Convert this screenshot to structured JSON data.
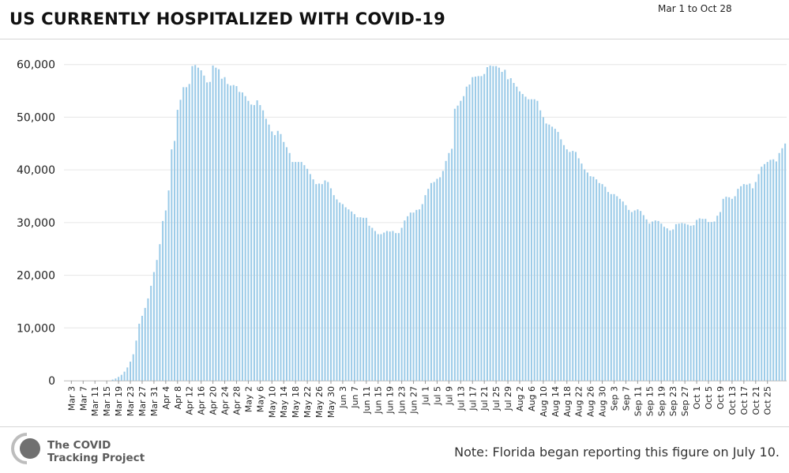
{
  "header": {
    "title": "US CURRENTLY HOSPITALIZED WITH COVID-19",
    "date_range": "Mar 1 to Oct 28"
  },
  "footer": {
    "logo_line1": "The COVID",
    "logo_line2": "Tracking Project",
    "note": "Note: Florida began reporting this figure on July 10."
  },
  "colors": {
    "bar": "#9ccbe8",
    "grid": "#e6e6e6"
  },
  "chart_data": {
    "type": "bar",
    "title": "US CURRENTLY HOSPITALIZED WITH COVID-19",
    "xlabel": "",
    "ylabel": "",
    "ylim": [
      0,
      64000
    ],
    "yticks": [
      0,
      10000,
      20000,
      30000,
      40000,
      50000,
      60000
    ],
    "ytick_labels": [
      "0",
      "10,000",
      "20,000",
      "30,000",
      "40,000",
      "50,000",
      "60,000"
    ],
    "grid": true,
    "legend": "none",
    "x_labels": [
      "Mar 3",
      "Mar 7",
      "Mar 11",
      "Mar 15",
      "Mar 19",
      "Mar 23",
      "Mar 27",
      "Mar 31",
      "Apr 4",
      "Apr 8",
      "Apr 12",
      "Apr 16",
      "Apr 20",
      "Apr 24",
      "Apr 28",
      "May 2",
      "May 6",
      "May 10",
      "May 14",
      "May 18",
      "May 22",
      "May 26",
      "May 30",
      "Jun 3",
      "Jun 7",
      "Jun 11",
      "Jun 15",
      "Jun 19",
      "Jun 23",
      "Jun 27",
      "Jul 1",
      "Jul 5",
      "Jul 9",
      "Jul 13",
      "Jul 17",
      "Jul 21",
      "Jul 25",
      "Jul 29",
      "Aug 2",
      "Aug 6",
      "Aug 10",
      "Aug 14",
      "Aug 18",
      "Aug 22",
      "Aug 26",
      "Aug 30",
      "Sep 3",
      "Sep 7",
      "Sep 11",
      "Sep 15",
      "Sep 19",
      "Sep 23",
      "Sep 27",
      "Oct 1",
      "Oct 5",
      "Oct 9",
      "Oct 13",
      "Oct 17",
      "Oct 21",
      "Oct 25"
    ],
    "first_date": "Mar 1",
    "last_date": "Oct 28",
    "values": [
      0,
      0,
      0,
      0,
      0,
      0,
      0,
      0,
      0,
      0,
      0,
      0,
      0,
      0,
      0,
      0,
      200,
      400,
      700,
      1100,
      1700,
      2500,
      3600,
      5000,
      7600,
      10800,
      12300,
      13800,
      15600,
      18000,
      20600,
      22900,
      25900,
      30300,
      32300,
      36100,
      43900,
      45500,
      51400,
      53300,
      55700,
      55700,
      56300,
      59700,
      59900,
      59400,
      58900,
      57900,
      56600,
      56700,
      59800,
      59400,
      59100,
      57300,
      57600,
      56300,
      56000,
      56100,
      55900,
      54800,
      54700,
      54000,
      53100,
      52400,
      52300,
      53200,
      52300,
      51300,
      49700,
      48600,
      47300,
      46600,
      47400,
      46800,
      45300,
      44300,
      43200,
      41500,
      41500,
      41500,
      41500,
      40900,
      40200,
      39200,
      38200,
      37300,
      37400,
      37300,
      38000,
      37700,
      36500,
      35200,
      34400,
      33800,
      33500,
      32900,
      32500,
      32100,
      31600,
      31000,
      31000,
      30900,
      30900,
      29400,
      29000,
      28400,
      27800,
      27800,
      28100,
      28400,
      28300,
      28400,
      28000,
      28000,
      29000,
      30400,
      31200,
      31900,
      31900,
      32400,
      32500,
      33500,
      35200,
      36400,
      37500,
      37700,
      38300,
      38600,
      39800,
      41700,
      43200,
      44000,
      51600,
      52200,
      53100,
      54000,
      55800,
      56200,
      57600,
      57700,
      57800,
      57800,
      58200,
      59500,
      59800,
      59700,
      59700,
      59400,
      58600,
      59000,
      57200,
      57400,
      56500,
      55800,
      54900,
      54400,
      53900,
      53400,
      53400,
      53400,
      53100,
      51300,
      50000,
      48800,
      48600,
      48200,
      47800,
      47200,
      45800,
      44700,
      43900,
      43400,
      43600,
      43400,
      42200,
      41200,
      40100,
      39500,
      38800,
      38700,
      38200,
      37500,
      37300,
      36800,
      35800,
      35400,
      35400,
      35000,
      34500,
      34000,
      33300,
      32400,
      32000,
      32300,
      32500,
      32200,
      31400,
      30600,
      29800,
      30200,
      30400,
      30300,
      29800,
      29200,
      28900,
      28500,
      28700,
      29700,
      29800,
      29900,
      29800,
      29600,
      29400,
      29500,
      30500,
      30800,
      30700,
      30700,
      30100,
      30100,
      30200,
      31300,
      32000,
      34500,
      34900,
      34800,
      34500,
      35000,
      36400,
      36900,
      37300,
      37200,
      37400,
      36500,
      37700,
      39200,
      40600,
      41100,
      41500,
      41900,
      42000,
      41600,
      43200,
      44100,
      45000
    ]
  }
}
